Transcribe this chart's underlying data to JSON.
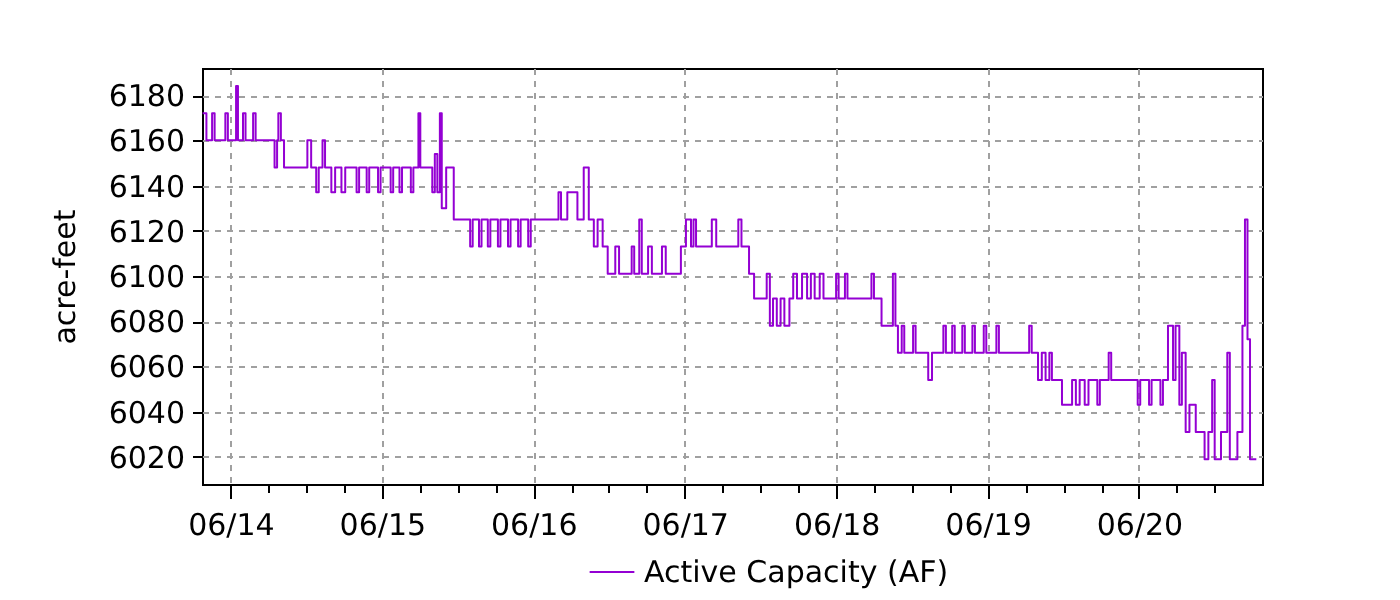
{
  "chart_data": {
    "type": "step",
    "ylabel": "acre-feet",
    "xlim": [
      "--06-13T19:30",
      "--06-20T19:30"
    ],
    "xticks": [
      {
        "value": "--06-14",
        "label": "06/14"
      },
      {
        "value": "--06-14T06:00",
        "label": null
      },
      {
        "value": "--06-14T12:00",
        "label": null
      },
      {
        "value": "--06-14T18:00",
        "label": null
      },
      {
        "value": "--06-15",
        "label": "06/15"
      },
      {
        "value": "--06-15T06:00",
        "label": null
      },
      {
        "value": "--06-15T12:00",
        "label": null
      },
      {
        "value": "--06-15T18:00",
        "label": null
      },
      {
        "value": "--06-16",
        "label": "06/16"
      },
      {
        "value": "--06-16T06:00",
        "label": null
      },
      {
        "value": "--06-16T12:00",
        "label": null
      },
      {
        "value": "--06-16T18:00",
        "label": null
      },
      {
        "value": "--06-17",
        "label": "06/17"
      },
      {
        "value": "--06-17T06:00",
        "label": null
      },
      {
        "value": "--06-17T12:00",
        "label": null
      },
      {
        "value": "--06-17T18:00",
        "label": null
      },
      {
        "value": "--06-18",
        "label": "06/18"
      },
      {
        "value": "--06-18T06:00",
        "label": null
      },
      {
        "value": "--06-18T12:00",
        "label": null
      },
      {
        "value": "--06-18T18:00",
        "label": null
      },
      {
        "value": "--06-19",
        "label": "06/19"
      },
      {
        "value": "--06-19T06:00",
        "label": null
      },
      {
        "value": "--06-19T12:00",
        "label": null
      },
      {
        "value": "--06-19T18:00",
        "label": null
      },
      {
        "value": "--06-20",
        "label": "06/20"
      },
      {
        "value": "--06-20T06:00",
        "label": null
      },
      {
        "value": "--06-20T12:00",
        "label": null
      }
    ],
    "ylim": [
      6008,
      6192
    ],
    "yticks": [
      6020,
      6040,
      6060,
      6080,
      6100,
      6120,
      6140,
      6160,
      6180
    ],
    "grid": true,
    "legend": "bottom",
    "line_style": "solid",
    "marker": "none",
    "series": [
      {
        "name": "Active Capacity (AF)",
        "color": "#9400d3",
        "x": [
          "--06-13T19:36",
          "--06-13T20:12",
          "--06-13T21:06",
          "--06-13T21:30",
          "--06-13T23:12",
          "--06-13T23:36",
          "--06-14T00:54",
          "--06-14T01:12",
          "--06-14T02:00",
          "--06-14T02:24",
          "--06-14T03:36",
          "--06-14T04:00",
          "--06-14T07:00",
          "--06-14T07:24",
          "--06-14T07:36",
          "--06-14T08:00",
          "--06-14T08:30",
          "--06-14T12:12",
          "--06-14T12:48",
          "--06-14T13:36",
          "--06-14T14:00",
          "--06-14T14:36",
          "--06-14T15:00",
          "--06-14T16:00",
          "--06-14T16:36",
          "--06-14T17:36",
          "--06-14T18:12",
          "--06-14T20:00",
          "--06-14T20:24",
          "--06-14T21:36",
          "--06-14T22:00",
          "--06-14T23:24",
          "--06-14T23:48",
          "--06-15T01:24",
          "--06-15T01:48",
          "--06-15T02:48",
          "--06-15T03:12",
          "--06-15T04:36",
          "--06-15T05:00",
          "--06-15T05:48",
          "--06-15T06:06",
          "--06-15T08:00",
          "--06-15T08:24",
          "--06-15T08:48",
          "--06-15T09:12",
          "--06-15T09:30",
          "--06-15T10:12",
          "--06-15T11:24",
          "--06-15T14:00",
          "--06-15T14:24",
          "--06-15T15:24",
          "--06-15T15:48",
          "--06-15T16:48",
          "--06-15T17:12",
          "--06-15T18:24",
          "--06-15T18:48",
          "--06-15T20:00",
          "--06-15T20:24",
          "--06-15T21:36",
          "--06-15T22:00",
          "--06-15T23:12",
          "--06-15T23:36",
          "--06-16T04:00",
          "--06-16T04:24",
          "--06-16T05:24",
          "--06-16T07:00",
          "--06-16T08:00",
          "--06-16T08:48",
          "--06-16T09:36",
          "--06-16T10:12",
          "--06-16T11:00",
          "--06-16T11:48",
          "--06-16T13:00",
          "--06-16T13:36",
          "--06-16T15:36",
          "--06-16T16:00",
          "--06-16T16:48",
          "--06-16T17:12",
          "--06-16T18:12",
          "--06-16T18:48",
          "--06-16T20:24",
          "--06-16T21:00",
          "--06-16T23:24",
          "--06-17T00:12",
          "--06-17T01:00",
          "--06-17T01:24",
          "--06-17T01:48",
          "--06-17T04:18",
          "--06-17T05:00",
          "--06-17T08:30",
          "--06-17T09:00",
          "--06-17T10:12",
          "--06-17T11:00",
          "--06-17T13:00",
          "--06-17T13:30",
          "--06-17T14:00",
          "--06-17T14:36",
          "--06-17T15:12",
          "--06-17T15:48",
          "--06-17T16:36",
          "--06-17T17:12",
          "--06-17T17:48",
          "--06-17T18:36",
          "--06-17T19:24",
          "--06-17T20:00",
          "--06-17T20:36",
          "--06-17T21:24",
          "--06-17T22:00",
          "--06-18T00:00",
          "--06-18T00:24",
          "--06-18T01:24",
          "--06-18T01:48",
          "--06-18T05:36",
          "--06-18T06:00",
          "--06-18T07:12",
          "--06-18T09:00",
          "--06-18T09:24",
          "--06-18T09:48",
          "--06-18T10:24",
          "--06-18T10:48",
          "--06-18T12:12",
          "--06-18T12:36",
          "--06-18T14:36",
          "--06-18T15:12",
          "--06-18T17:00",
          "--06-18T17:24",
          "--06-18T18:24",
          "--06-18T18:48",
          "--06-18T20:00",
          "--06-18T20:24",
          "--06-18T21:36",
          "--06-18T22:00",
          "--06-18T23:24",
          "--06-18T23:48",
          "--06-19T01:24",
          "--06-19T01:48",
          "--06-19T06:36",
          "--06-19T07:00",
          "--06-19T08:00",
          "--06-19T08:36",
          "--06-19T09:12",
          "--06-19T09:48",
          "--06-19T10:12",
          "--06-19T11:48",
          "--06-19T13:24",
          "--06-19T14:00",
          "--06-19T14:36",
          "--06-19T15:24",
          "--06-19T16:00",
          "--06-19T17:24",
          "--06-19T17:48",
          "--06-19T19:12",
          "--06-19T19:36",
          "--06-19T23:48",
          "--06-20T00:12",
          "--06-20T01:36",
          "--06-20T02:00",
          "--06-20T03:24",
          "--06-20T03:48",
          "--06-20T04:36",
          "--06-20T05:24",
          "--06-20T05:48",
          "--06-20T06:24",
          "--06-20T06:48",
          "--06-20T07:24",
          "--06-20T08:00",
          "--06-20T09:00",
          "--06-20T10:24",
          "--06-20T11:00",
          "--06-20T11:36",
          "--06-20T12:00",
          "--06-20T13:00",
          "--06-20T14:00",
          "--06-20T14:24",
          "--06-20T15:36",
          "--06-20T16:24",
          "--06-20T16:48",
          "--06-20T17:12",
          "--06-20T17:36",
          "--06-20T18:36"
        ],
        "values": [
          6172,
          6160,
          6172,
          6160,
          6172,
          6160,
          6184,
          6160,
          6172,
          6160,
          6172,
          6160,
          6148,
          6160,
          6172,
          6160,
          6148,
          6160,
          6148,
          6137,
          6148,
          6160,
          6148,
          6137,
          6148,
          6137,
          6148,
          6137,
          6148,
          6137,
          6148,
          6137,
          6148,
          6137,
          6148,
          6137,
          6148,
          6137,
          6148,
          6172,
          6148,
          6137,
          6154,
          6137,
          6172,
          6130,
          6148,
          6125,
          6113,
          6125,
          6113,
          6125,
          6113,
          6125,
          6113,
          6125,
          6113,
          6125,
          6113,
          6125,
          6113,
          6125,
          6137,
          6125,
          6137,
          6125,
          6148,
          6125,
          6113,
          6125,
          6113,
          6101,
          6113,
          6101,
          6113,
          6101,
          6125,
          6101,
          6113,
          6101,
          6113,
          6101,
          6113,
          6125,
          6113,
          6125,
          6113,
          6125,
          6113,
          6125,
          6113,
          6101,
          6090,
          6101,
          6078,
          6090,
          6078,
          6090,
          6078,
          6090,
          6101,
          6090,
          6101,
          6090,
          6101,
          6090,
          6101,
          6090,
          6101,
          6090,
          6101,
          6090,
          6101,
          6090,
          6078,
          6101,
          6078,
          6066,
          6078,
          6066,
          6078,
          6066,
          6054,
          6066,
          6078,
          6066,
          6078,
          6066,
          6078,
          6066,
          6078,
          6066,
          6078,
          6066,
          6078,
          6066,
          6078,
          6066,
          6054,
          6066,
          6054,
          6066,
          6054,
          6043,
          6054,
          6043,
          6054,
          6043,
          6054,
          6043,
          6054,
          6066,
          6054,
          6043,
          6054,
          6043,
          6054,
          6043,
          6054,
          6078,
          6054,
          6078,
          6043,
          6066,
          6031,
          6043,
          6031,
          6019,
          6031,
          6054,
          6019,
          6031,
          6066,
          6019,
          6031,
          6078,
          6125,
          6072,
          6019,
          6019
        ]
      }
    ]
  }
}
